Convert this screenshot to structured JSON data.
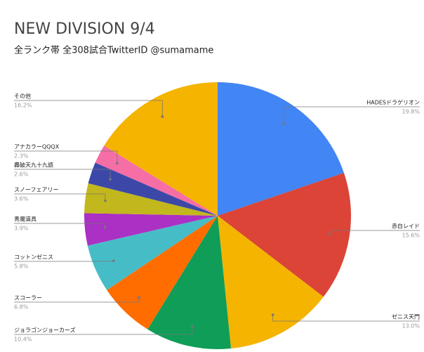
{
  "chart_data": {
    "type": "pie",
    "title": "NEW DIVISION 9/4",
    "subtitle": "全ランク帯 全308試合TwitterID @sumamame",
    "categories": [
      "HADESドラゲリオン",
      "赤白レイド",
      "ゼニス天門",
      "ジョラゴンジョーカーズ",
      "スコーラー",
      "コットンゼニス",
      "青魔道具",
      "スノーフェアリー",
      "轟破天九十九語",
      "アナカラーQQQX",
      "その他"
    ],
    "values": [
      19.8,
      15.6,
      13.0,
      10.4,
      6.8,
      5.8,
      3.9,
      3.6,
      2.6,
      2.3,
      16.2
    ],
    "value_labels": [
      "19.8%",
      "15.6%",
      "13.0%",
      "10.4%",
      "6.8%",
      "5.8%",
      "3.9%",
      "3.6%",
      "2.6%",
      "2.3%",
      "16.2%"
    ],
    "colors": [
      "#4285f4",
      "#db4437",
      "#f4b400",
      "#0f9d58",
      "#ff6d01",
      "#46bdc6",
      "#ab30c4",
      "#c2b71c",
      "#3c48a8",
      "#f56ea6",
      "#f4b400"
    ]
  }
}
